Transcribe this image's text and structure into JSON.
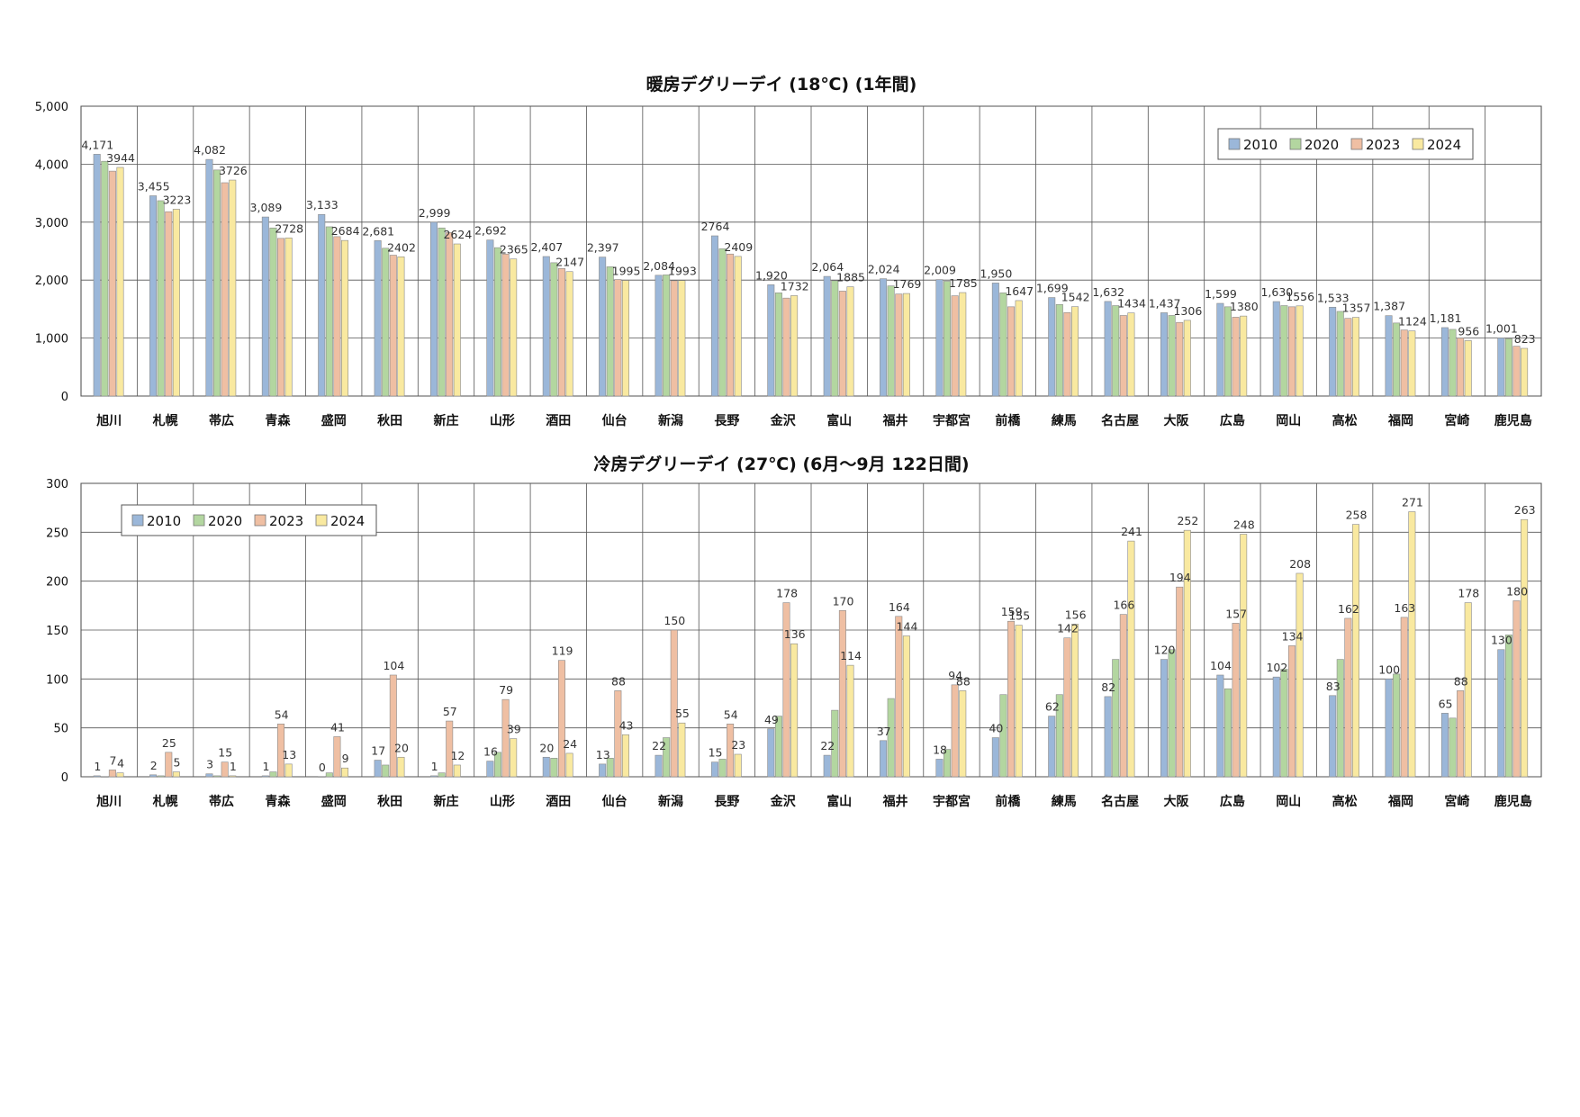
{
  "chart_data": [
    {
      "type": "bar",
      "title": "暖房デグリーデイ (18℃) (1年間)",
      "xlabel": "",
      "ylabel": "",
      "ylim": [
        0,
        5000
      ],
      "yticks": [
        "0",
        "1,000",
        "2,000",
        "3,000",
        "4,000",
        "5,000"
      ],
      "grid": true,
      "legend_position": "top-right",
      "categories": [
        "旭川",
        "札幌",
        "帯広",
        "青森",
        "盛岡",
        "秋田",
        "新庄",
        "山形",
        "酒田",
        "仙台",
        "新潟",
        "長野",
        "金沢",
        "富山",
        "福井",
        "宇都宮",
        "前橋",
        "練馬",
        "名古屋",
        "大阪",
        "広島",
        "岡山",
        "高松",
        "福岡",
        "宮崎",
        "鹿児島"
      ],
      "series": [
        {
          "name": "2010",
          "color": "#9bb7d9",
          "values": [
            4171,
            3455,
            4082,
            3089,
            3133,
            2681,
            2999,
            2692,
            2407,
            2397,
            2084,
            2764,
            1920,
            2064,
            2024,
            2009,
            1950,
            1699,
            1632,
            1437,
            1599,
            1630,
            1533,
            1387,
            1181,
            1001
          ]
        },
        {
          "name": "2020",
          "color": "#b3d6a0",
          "values": [
            4050,
            3370,
            3900,
            2900,
            2920,
            2550,
            2900,
            2560,
            2300,
            2230,
            2090,
            2540,
            1780,
            1990,
            1900,
            1980,
            1780,
            1580,
            1560,
            1390,
            1540,
            1560,
            1460,
            1260,
            1150,
            990
          ]
        },
        {
          "name": "2023",
          "color": "#efbfa3",
          "values": [
            3880,
            3180,
            3680,
            2720,
            2750,
            2430,
            2820,
            2450,
            2200,
            2010,
            1990,
            2450,
            1690,
            1810,
            1760,
            1730,
            1540,
            1440,
            1390,
            1270,
            1360,
            1540,
            1340,
            1140,
            1000,
            860
          ]
        },
        {
          "name": "2024",
          "color": "#f9e9a0",
          "values": [
            3944,
            3223,
            3726,
            2728,
            2684,
            2402,
            2624,
            2365,
            2147,
            1995,
            1993,
            2409,
            1732,
            1885,
            1769,
            1785,
            1647,
            1542,
            1434,
            1306,
            1380,
            1556,
            1357,
            1124,
            956,
            823
          ]
        }
      ],
      "data_labels": [
        {
          "category": "旭川",
          "series": "2010",
          "text": "4,171"
        },
        {
          "category": "旭川",
          "series": "2024",
          "text": "3944"
        },
        {
          "category": "札幌",
          "series": "2010",
          "text": "3,455"
        },
        {
          "category": "札幌",
          "series": "2024",
          "text": "3223"
        },
        {
          "category": "帯広",
          "series": "2010",
          "text": "4,082"
        },
        {
          "category": "帯広",
          "series": "2024",
          "text": "3726"
        },
        {
          "category": "青森",
          "series": "2010",
          "text": "3,089"
        },
        {
          "category": "青森",
          "series": "2024",
          "text": "2728"
        },
        {
          "category": "盛岡",
          "series": "2010",
          "text": "3,133"
        },
        {
          "category": "盛岡",
          "series": "2024",
          "text": "2684"
        },
        {
          "category": "秋田",
          "series": "2010",
          "text": "2,681"
        },
        {
          "category": "秋田",
          "series": "2024",
          "text": "2402"
        },
        {
          "category": "新庄",
          "series": "2010",
          "text": "2,999"
        },
        {
          "category": "新庄",
          "series": "2024",
          "text": "2624"
        },
        {
          "category": "山形",
          "series": "2010",
          "text": "2,692"
        },
        {
          "category": "山形",
          "series": "2024",
          "text": "2365"
        },
        {
          "category": "酒田",
          "series": "2010",
          "text": "2,407"
        },
        {
          "category": "酒田",
          "series": "2024",
          "text": "2147"
        },
        {
          "category": "仙台",
          "series": "2010",
          "text": "2,397"
        },
        {
          "category": "仙台",
          "series": "2024",
          "text": "1995"
        },
        {
          "category": "新潟",
          "series": "2010",
          "text": "2,084"
        },
        {
          "category": "新潟",
          "series": "2024",
          "text": "1993"
        },
        {
          "category": "長野",
          "series": "2010",
          "text": "2764"
        },
        {
          "category": "長野",
          "series": "2024",
          "text": "2409"
        },
        {
          "category": "金沢",
          "series": "2010",
          "text": "1,920"
        },
        {
          "category": "金沢",
          "series": "2024",
          "text": "1732"
        },
        {
          "category": "富山",
          "series": "2010",
          "text": "2,064"
        },
        {
          "category": "富山",
          "series": "2024",
          "text": "1885"
        },
        {
          "category": "福井",
          "series": "2010",
          "text": "2,024"
        },
        {
          "category": "福井",
          "series": "2024",
          "text": "1769"
        },
        {
          "category": "宇都宮",
          "series": "2010",
          "text": "2,009"
        },
        {
          "category": "宇都宮",
          "series": "2024",
          "text": "1785"
        },
        {
          "category": "前橋",
          "series": "2010",
          "text": "1,950"
        },
        {
          "category": "前橋",
          "series": "2024",
          "text": "1647"
        },
        {
          "category": "練馬",
          "series": "2010",
          "text": "1,699"
        },
        {
          "category": "練馬",
          "series": "2024",
          "text": "1542"
        },
        {
          "category": "名古屋",
          "series": "2010",
          "text": "1,632"
        },
        {
          "category": "名古屋",
          "series": "2024",
          "text": "1434"
        },
        {
          "category": "大阪",
          "series": "2010",
          "text": "1,437"
        },
        {
          "category": "大阪",
          "series": "2024",
          "text": "1306"
        },
        {
          "category": "広島",
          "series": "2010",
          "text": "1,599"
        },
        {
          "category": "広島",
          "series": "2024",
          "text": "1380"
        },
        {
          "category": "岡山",
          "series": "2010",
          "text": "1,630"
        },
        {
          "category": "岡山",
          "series": "2024",
          "text": "1556"
        },
        {
          "category": "高松",
          "series": "2010",
          "text": "1,533"
        },
        {
          "category": "高松",
          "series": "2024",
          "text": "1357"
        },
        {
          "category": "福岡",
          "series": "2010",
          "text": "1,387"
        },
        {
          "category": "福岡",
          "series": "2024",
          "text": "1124"
        },
        {
          "category": "宮崎",
          "series": "2010",
          "text": "1,181"
        },
        {
          "category": "宮崎",
          "series": "2024",
          "text": "956"
        },
        {
          "category": "鹿児島",
          "series": "2010",
          "text": "1,001"
        },
        {
          "category": "鹿児島",
          "series": "2024",
          "text": "823"
        }
      ]
    },
    {
      "type": "bar",
      "title": "冷房デグリーデイ (27℃) (6月～9月 122日間)",
      "xlabel": "",
      "ylabel": "",
      "ylim": [
        0,
        300
      ],
      "yticks": [
        "0",
        "50",
        "100",
        "150",
        "200",
        "250",
        "300"
      ],
      "grid": true,
      "legend_position": "top-left",
      "categories": [
        "旭川",
        "札幌",
        "帯広",
        "青森",
        "盛岡",
        "秋田",
        "新庄",
        "山形",
        "酒田",
        "仙台",
        "新潟",
        "長野",
        "金沢",
        "富山",
        "福井",
        "宇都宮",
        "前橋",
        "練馬",
        "名古屋",
        "大阪",
        "広島",
        "岡山",
        "高松",
        "福岡",
        "宮崎",
        "鹿児島"
      ],
      "series": [
        {
          "name": "2010",
          "color": "#9bb7d9",
          "values": [
            1,
            2,
            3,
            1,
            0,
            17,
            1,
            16,
            20,
            13,
            22,
            15,
            49,
            22,
            37,
            18,
            40,
            62,
            82,
            120,
            104,
            102,
            83,
            100,
            65,
            130
          ]
        },
        {
          "name": "2020",
          "color": "#b3d6a0",
          "values": [
            0,
            1,
            1,
            5,
            4,
            12,
            4,
            25,
            19,
            19,
            40,
            18,
            62,
            68,
            80,
            28,
            84,
            84,
            120,
            130,
            90,
            110,
            120,
            105,
            60,
            145
          ]
        },
        {
          "name": "2023",
          "color": "#efbfa3",
          "values": [
            7,
            25,
            15,
            54,
            41,
            104,
            57,
            79,
            119,
            88,
            150,
            54,
            178,
            170,
            164,
            94,
            159,
            142,
            166,
            194,
            157,
            134,
            162,
            163,
            88,
            180
          ]
        },
        {
          "name": "2024",
          "color": "#f9e9a0",
          "values": [
            4,
            5,
            1,
            13,
            9,
            20,
            12,
            39,
            24,
            43,
            55,
            23,
            136,
            114,
            144,
            88,
            155,
            156,
            241,
            252,
            248,
            208,
            258,
            271,
            178,
            263
          ]
        }
      ],
      "data_labels": [
        {
          "category": "旭川",
          "series": "2010",
          "text": "1"
        },
        {
          "category": "旭川",
          "series": "2023",
          "text": "7"
        },
        {
          "category": "旭川",
          "series": "2024",
          "text": "4"
        },
        {
          "category": "札幌",
          "series": "2010",
          "text": "2"
        },
        {
          "category": "札幌",
          "series": "2023",
          "text": "25"
        },
        {
          "category": "札幌",
          "series": "2024",
          "text": "5"
        },
        {
          "category": "帯広",
          "series": "2010",
          "text": "3"
        },
        {
          "category": "帯広",
          "series": "2023",
          "text": "15"
        },
        {
          "category": "帯広",
          "series": "2024",
          "text": "1"
        },
        {
          "category": "青森",
          "series": "2010",
          "text": "1"
        },
        {
          "category": "青森",
          "series": "2023",
          "text": "54"
        },
        {
          "category": "青森",
          "series": "2024",
          "text": "13"
        },
        {
          "category": "盛岡",
          "series": "2010",
          "text": "0"
        },
        {
          "category": "盛岡",
          "series": "2023",
          "text": "41"
        },
        {
          "category": "盛岡",
          "series": "2024",
          "text": "9"
        },
        {
          "category": "秋田",
          "series": "2010",
          "text": "17"
        },
        {
          "category": "秋田",
          "series": "2023",
          "text": "104"
        },
        {
          "category": "秋田",
          "series": "2024",
          "text": "20"
        },
        {
          "category": "新庄",
          "series": "2010",
          "text": "1"
        },
        {
          "category": "新庄",
          "series": "2023",
          "text": "57"
        },
        {
          "category": "新庄",
          "series": "2024",
          "text": "12"
        },
        {
          "category": "山形",
          "series": "2010",
          "text": "16"
        },
        {
          "category": "山形",
          "series": "2023",
          "text": "79"
        },
        {
          "category": "山形",
          "series": "2024",
          "text": "39"
        },
        {
          "category": "酒田",
          "series": "2010",
          "text": "20"
        },
        {
          "category": "酒田",
          "series": "2023",
          "text": "119"
        },
        {
          "category": "酒田",
          "series": "2024",
          "text": "24"
        },
        {
          "category": "仙台",
          "series": "2010",
          "text": "13"
        },
        {
          "category": "仙台",
          "series": "2023",
          "text": "88"
        },
        {
          "category": "仙台",
          "series": "2024",
          "text": "43"
        },
        {
          "category": "新潟",
          "series": "2010",
          "text": "22"
        },
        {
          "category": "新潟",
          "series": "2023",
          "text": "150"
        },
        {
          "category": "新潟",
          "series": "2024",
          "text": "55"
        },
        {
          "category": "長野",
          "series": "2010",
          "text": "15"
        },
        {
          "category": "長野",
          "series": "2023",
          "text": "54"
        },
        {
          "category": "長野",
          "series": "2024",
          "text": "23"
        },
        {
          "category": "金沢",
          "series": "2010",
          "text": "49"
        },
        {
          "category": "金沢",
          "series": "2023",
          "text": "178"
        },
        {
          "category": "金沢",
          "series": "2024",
          "text": "136"
        },
        {
          "category": "富山",
          "series": "2010",
          "text": "22"
        },
        {
          "category": "富山",
          "series": "2023",
          "text": "170"
        },
        {
          "category": "富山",
          "series": "2024",
          "text": "114"
        },
        {
          "category": "福井",
          "series": "2010",
          "text": "37"
        },
        {
          "category": "福井",
          "series": "2023",
          "text": "164"
        },
        {
          "category": "福井",
          "series": "2024",
          "text": "144"
        },
        {
          "category": "宇都宮",
          "series": "2010",
          "text": "18"
        },
        {
          "category": "宇都宮",
          "series": "2023",
          "text": "94"
        },
        {
          "category": "宇都宮",
          "series": "2024",
          "text": "88"
        },
        {
          "category": "前橋",
          "series": "2010",
          "text": "40"
        },
        {
          "category": "前橋",
          "series": "2023",
          "text": "159"
        },
        {
          "category": "前橋",
          "series": "2024",
          "text": "155"
        },
        {
          "category": "練馬",
          "series": "2010",
          "text": "62"
        },
        {
          "category": "練馬",
          "series": "2023",
          "text": "142"
        },
        {
          "category": "練馬",
          "series": "2024",
          "text": "156"
        },
        {
          "category": "名古屋",
          "series": "2010",
          "text": "82"
        },
        {
          "category": "名古屋",
          "series": "2023",
          "text": "166"
        },
        {
          "category": "名古屋",
          "series": "2024",
          "text": "241"
        },
        {
          "category": "大阪",
          "series": "2010",
          "text": "120"
        },
        {
          "category": "大阪",
          "series": "2023",
          "text": "194"
        },
        {
          "category": "大阪",
          "series": "2024",
          "text": "252"
        },
        {
          "category": "広島",
          "series": "2010",
          "text": "104"
        },
        {
          "category": "広島",
          "series": "2023",
          "text": "157"
        },
        {
          "category": "広島",
          "series": "2024",
          "text": "248"
        },
        {
          "category": "岡山",
          "series": "2010",
          "text": "102"
        },
        {
          "category": "岡山",
          "series": "2023",
          "text": "134"
        },
        {
          "category": "岡山",
          "series": "2024",
          "text": "208"
        },
        {
          "category": "高松",
          "series": "2010",
          "text": "83"
        },
        {
          "category": "高松",
          "series": "2023",
          "text": "162"
        },
        {
          "category": "高松",
          "series": "2024",
          "text": "258"
        },
        {
          "category": "福岡",
          "series": "2010",
          "text": "100"
        },
        {
          "category": "福岡",
          "series": "2023",
          "text": "163"
        },
        {
          "category": "福岡",
          "series": "2024",
          "text": "271"
        },
        {
          "category": "宮崎",
          "series": "2010",
          "text": "65"
        },
        {
          "category": "宮崎",
          "series": "2023",
          "text": "88"
        },
        {
          "category": "宮崎",
          "series": "2024",
          "text": "178"
        },
        {
          "category": "鹿児島",
          "series": "2010",
          "text": "130"
        },
        {
          "category": "鹿児島",
          "series": "2023",
          "text": "180"
        },
        {
          "category": "鹿児島",
          "series": "2024",
          "text": "263"
        }
      ]
    }
  ]
}
